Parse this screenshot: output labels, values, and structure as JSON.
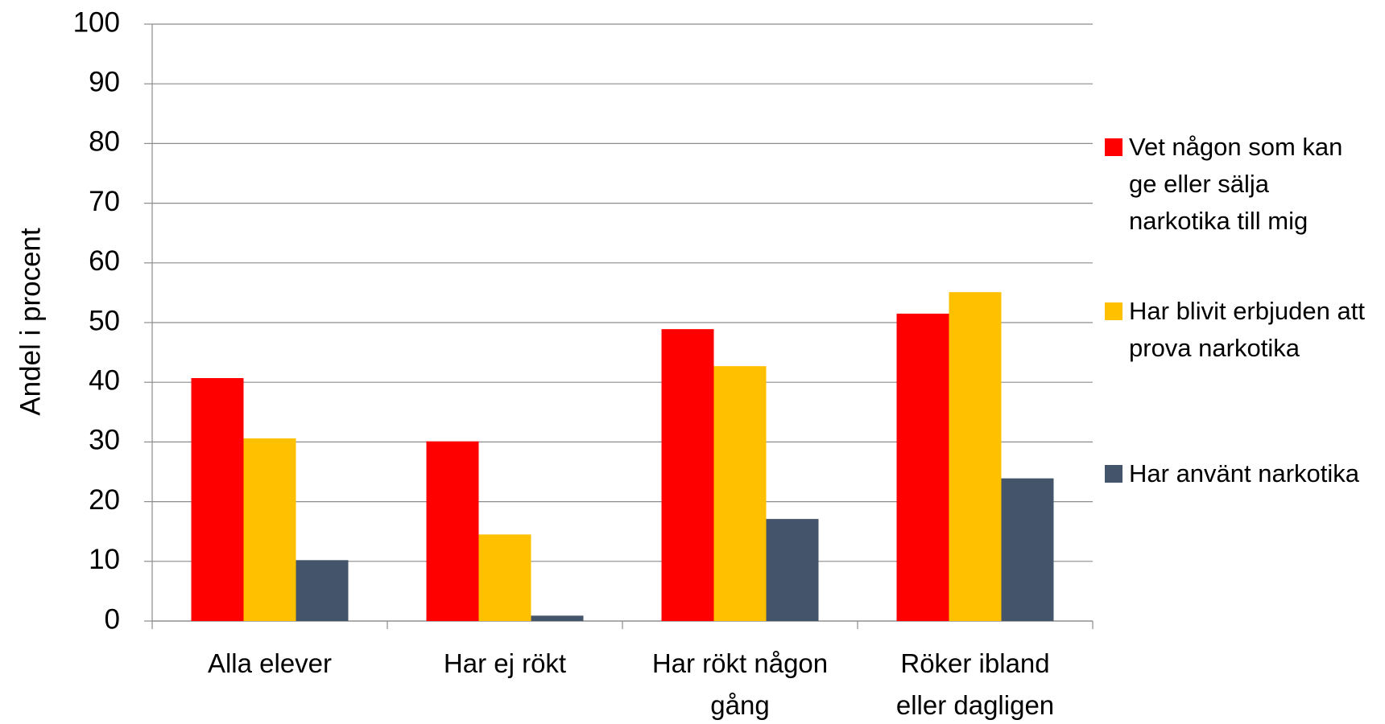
{
  "chart_data": {
    "type": "bar",
    "y_label": "Andel i procent",
    "categories": [
      "Alla elever",
      "Har ej rökt",
      "Har rökt någon gång",
      "Röker ibland eller dagligen"
    ],
    "series": [
      {
        "name": "Vet någon som kan ge eller sälja narkotika till mig",
        "color": "#ff0000",
        "values": [
          40.7,
          30.1,
          48.9,
          51.5
        ]
      },
      {
        "name": "Har blivit erbjuden att prova narkotika",
        "color": "#ffc000",
        "values": [
          30.6,
          14.5,
          42.7,
          55.1
        ]
      },
      {
        "name": "Har använt narkotika",
        "color": "#44546a",
        "values": [
          10.2,
          0.9,
          17.1,
          23.9
        ]
      }
    ],
    "ylim": [
      0,
      100
    ],
    "yticks": [
      0,
      10,
      20,
      30,
      40,
      50,
      60,
      70,
      80,
      90,
      100
    ],
    "grid": true,
    "legend": "right"
  }
}
